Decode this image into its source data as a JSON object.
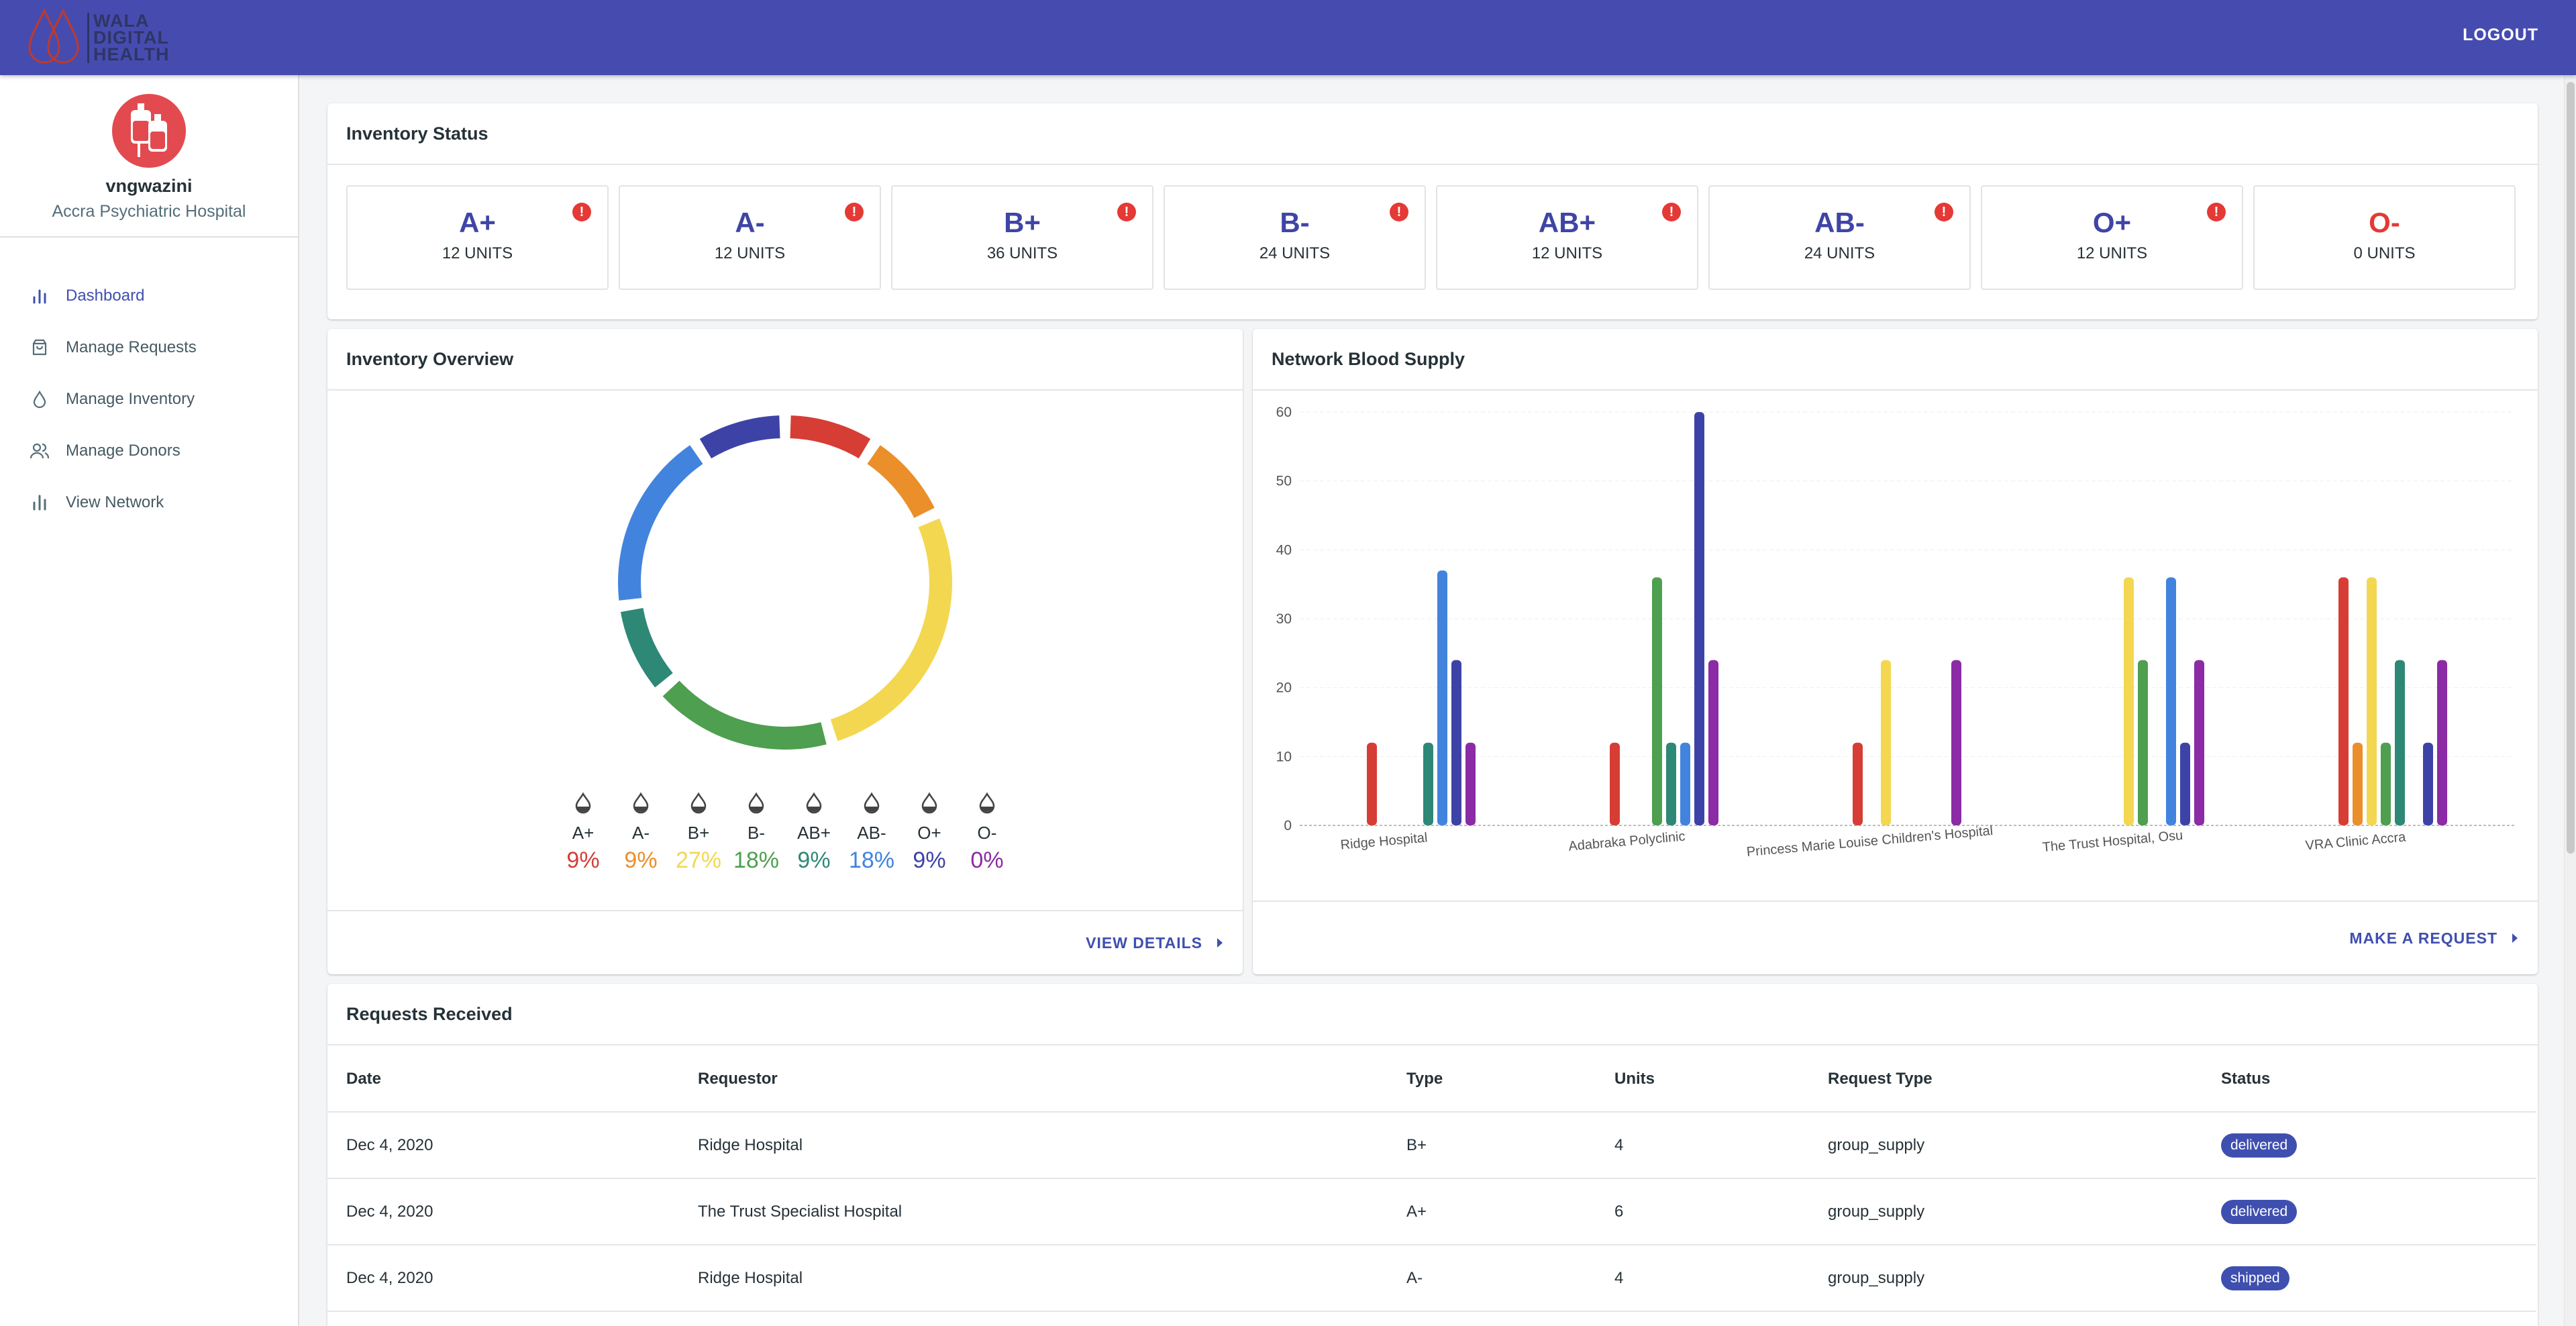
{
  "app": {
    "logo_text": [
      "WALA",
      "DIGITAL",
      "HEALTH"
    ],
    "logout": "LOGOUT"
  },
  "profile": {
    "username": "vngwazini",
    "hospital": "Accra Psychiatric Hospital"
  },
  "nav": [
    {
      "label": "Dashboard",
      "icon": "bar-chart-icon",
      "active": true
    },
    {
      "label": "Manage Requests",
      "icon": "shopping-bag-icon",
      "active": false
    },
    {
      "label": "Manage Inventory",
      "icon": "droplet-icon",
      "active": false
    },
    {
      "label": "Manage Donors",
      "icon": "users-icon",
      "active": false
    },
    {
      "label": "View Network",
      "icon": "bar-chart-icon",
      "active": false
    }
  ],
  "inventory_status": {
    "title": "Inventory Status",
    "items": [
      {
        "type": "A+",
        "units": "12 UNITS",
        "alert": true
      },
      {
        "type": "A-",
        "units": "12 UNITS",
        "alert": true
      },
      {
        "type": "B+",
        "units": "36 UNITS",
        "alert": true
      },
      {
        "type": "B-",
        "units": "24 UNITS",
        "alert": true
      },
      {
        "type": "AB+",
        "units": "12 UNITS",
        "alert": true
      },
      {
        "type": "AB-",
        "units": "24 UNITS",
        "alert": true
      },
      {
        "type": "O+",
        "units": "12 UNITS",
        "alert": true
      },
      {
        "type": "O-",
        "units": "0 UNITS",
        "alert": false
      }
    ]
  },
  "inventory_overview": {
    "title": "Inventory Overview",
    "view_details": "VIEW DETAILS"
  },
  "network_supply": {
    "title": "Network Blood Supply",
    "make_request": "MAKE A REQUEST"
  },
  "colors": {
    "A+": "#d63d35",
    "A-": "#ea8f2a",
    "B+": "#f3d750",
    "B-": "#4e9f4f",
    "AB+": "#2e8876",
    "AB-": "#4284dd",
    "O+": "#3d43a6",
    "O-": "#8b2ba5"
  },
  "chart_data": [
    {
      "type": "pie",
      "categories": [
        "A+",
        "A-",
        "B+",
        "B-",
        "AB+",
        "AB-",
        "O+",
        "O-"
      ],
      "values": [
        12,
        12,
        36,
        24,
        12,
        24,
        12,
        0
      ],
      "percent_labels": [
        "9%",
        "9%",
        "27%",
        "18%",
        "9%",
        "18%",
        "9%",
        "0%"
      ]
    },
    {
      "type": "bar",
      "categories": [
        "Ridge Hospital",
        "Adabraka Polyclinic",
        "Princess Marie Louise Children's Hospital",
        "The Trust Hospital, Osu",
        "VRA Clinic Accra"
      ],
      "series": [
        {
          "key": "A+",
          "values": [
            12,
            12,
            12,
            0,
            36
          ]
        },
        {
          "key": "A-",
          "values": [
            0,
            0,
            0,
            0,
            12
          ]
        },
        {
          "key": "B+",
          "values": [
            0,
            0,
            24,
            36,
            36
          ]
        },
        {
          "key": "B-",
          "values": [
            0,
            36,
            0,
            24,
            12
          ]
        },
        {
          "key": "AB+",
          "values": [
            12,
            12,
            0,
            0,
            24
          ]
        },
        {
          "key": "AB-",
          "values": [
            37,
            12,
            0,
            36,
            0
          ]
        },
        {
          "key": "O+",
          "values": [
            24,
            60,
            0,
            12,
            12
          ]
        },
        {
          "key": "O-",
          "values": [
            12,
            24,
            24,
            24,
            24
          ]
        }
      ],
      "ylim": [
        0,
        60
      ],
      "yticks": [
        0,
        10,
        20,
        30,
        40,
        50,
        60
      ],
      "grid": true
    }
  ],
  "requests": {
    "title": "Requests Received",
    "headers": [
      "Date",
      "Requestor",
      "Type",
      "Units",
      "Request Type",
      "Status"
    ],
    "rows": [
      [
        "Dec 4, 2020",
        "Ridge Hospital",
        "B+",
        "4",
        "group_supply",
        "delivered"
      ],
      [
        "Dec 4, 2020",
        "The Trust Specialist Hospital",
        "A+",
        "6",
        "group_supply",
        "delivered"
      ],
      [
        "Dec 4, 2020",
        "Ridge Hospital",
        "A-",
        "4",
        "group_supply",
        "shipped"
      ]
    ]
  }
}
